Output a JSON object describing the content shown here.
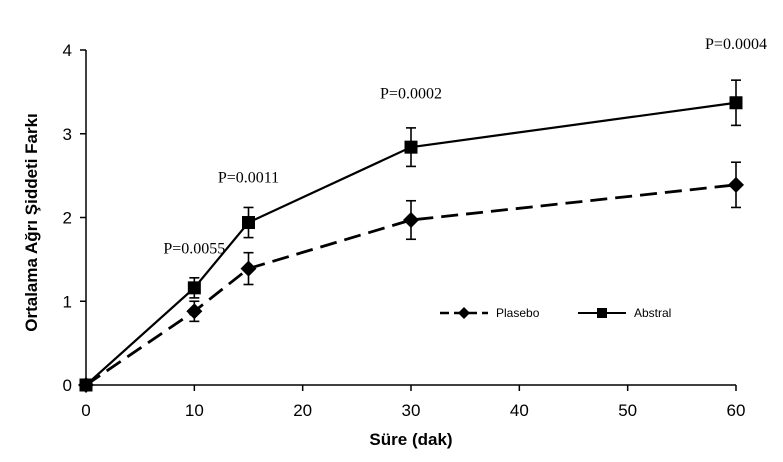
{
  "chart_data": {
    "type": "line",
    "xlabel": "Süre (dak)",
    "ylabel": "Ortalama Ağrı Şiddeti Farkı",
    "xlim": [
      0,
      60
    ],
    "ylim": [
      0,
      4
    ],
    "x_ticks": [
      0,
      10,
      20,
      30,
      40,
      50,
      60
    ],
    "y_ticks": [
      0,
      1,
      2,
      3,
      4
    ],
    "grid": false,
    "legend_position": "center-right",
    "series": [
      {
        "name": "Plasebo",
        "marker": "diamond",
        "line_style": "dashed",
        "color": "#000000",
        "x": [
          0,
          10,
          15,
          30,
          60
        ],
        "y": [
          0,
          0.88,
          1.39,
          1.97,
          2.39
        ],
        "err": [
          0,
          0.12,
          0.19,
          0.23,
          0.27
        ]
      },
      {
        "name": "Abstral",
        "marker": "square",
        "line_style": "solid",
        "color": "#000000",
        "x": [
          0,
          10,
          15,
          30,
          60
        ],
        "y": [
          0,
          1.16,
          1.94,
          2.84,
          3.37
        ],
        "err": [
          0,
          0.12,
          0.18,
          0.23,
          0.27
        ]
      }
    ],
    "annotations": [
      {
        "text": "P=0.0055",
        "x": 10,
        "y": 1.57
      },
      {
        "text": "P=0.0011",
        "x": 15,
        "y": 2.42
      },
      {
        "text": "P=0.0002",
        "x": 30,
        "y": 3.42
      },
      {
        "text": "P=0.0004",
        "x": 60,
        "y": 4.01
      }
    ]
  }
}
